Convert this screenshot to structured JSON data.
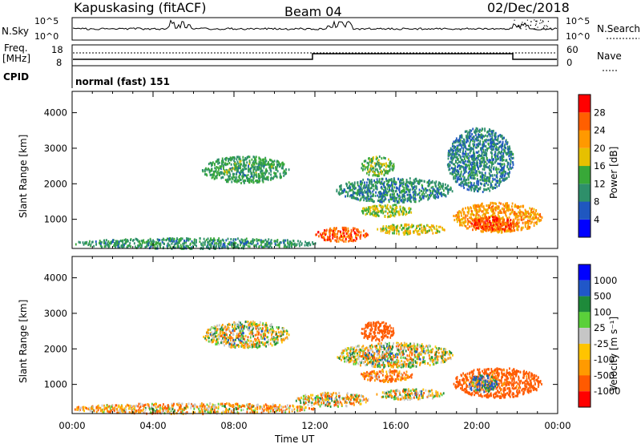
{
  "header": {
    "station": "Kapuskasing (fitACF)",
    "beam": "Beam 04",
    "date": "02/Dec/2018"
  },
  "panels": {
    "nsky": {
      "label": "N.Sky",
      "ticks": [
        "10^5",
        "10^0"
      ]
    },
    "nsearch": {
      "label": "N.Search"
    },
    "freq": {
      "label_line1": "Freq.",
      "label_line2": "[MHz]",
      "ticks": [
        "18",
        "8"
      ]
    },
    "nave": {
      "label": "Nave",
      "ticks": [
        "60",
        "0"
      ]
    },
    "cpid": {
      "label": "CPID",
      "value": "normal (fast) 151"
    }
  },
  "colors": {
    "power": [
      "#0000ff",
      "#1f57c0",
      "#2e8f6a",
      "#38a838",
      "#e6c000",
      "#ff9900",
      "#ff5f00",
      "#ff0000"
    ],
    "velocity": [
      "#ff0000",
      "#ff5a00",
      "#ff9a00",
      "#ffc400",
      "#c6c6c6",
      "#5ad03a",
      "#1e8a3a",
      "#2057c8",
      "#0000ff"
    ]
  },
  "chart_data": [
    {
      "type": "heatmap",
      "name": "power",
      "ylabel": "Slant Range [km]",
      "xlabel": "Time UT",
      "x_ticks": [
        "00:00",
        "04:00",
        "08:00",
        "12:00",
        "16:00",
        "20:00",
        "00:00"
      ],
      "y_ticks": [
        1000,
        2000,
        3000,
        4000
      ],
      "ylim": [
        180,
        4600
      ],
      "xlim": [
        0,
        24
      ],
      "colorbar": {
        "label": "Power [dB]",
        "ticks": [
          4,
          8,
          12,
          16,
          20,
          24,
          28
        ],
        "range": [
          0,
          32
        ]
      },
      "regions": [
        {
          "t": [
            6.4,
            10.7
          ],
          "r": [
            2050,
            2800
          ],
          "v": 12
        },
        {
          "t": [
            14.2,
            15.9
          ],
          "r": [
            2250,
            2800
          ],
          "v": 14
        },
        {
          "t": [
            12.0,
            14.6
          ],
          "r": [
            400,
            800
          ],
          "v": 26
        },
        {
          "t": [
            14.2,
            16.8
          ],
          "r": [
            1100,
            1450
          ],
          "v": 16
        },
        {
          "t": [
            15.0,
            18.4
          ],
          "r": [
            600,
            900
          ],
          "v": 18
        },
        {
          "t": [
            18.8,
            23.2
          ],
          "r": [
            650,
            1500
          ],
          "v": 22
        },
        {
          "t": [
            19.5,
            22.0
          ],
          "r": [
            700,
            1100
          ],
          "v": 28
        },
        {
          "t": [
            0.0,
            12.0
          ],
          "r": [
            200,
            500
          ],
          "v": 11
        },
        {
          "t": [
            13.0,
            18.8
          ],
          "r": [
            1500,
            2200
          ],
          "v": 10
        },
        {
          "t": [
            18.5,
            21.8
          ],
          "r": [
            1800,
            3600
          ],
          "v": 9
        }
      ]
    },
    {
      "type": "heatmap",
      "name": "velocity",
      "ylabel": "Slant Range [km]",
      "xlabel": "Time UT",
      "x_ticks": [
        "00:00",
        "04:00",
        "08:00",
        "12:00",
        "16:00",
        "20:00",
        "00:00"
      ],
      "y_ticks": [
        1000,
        2000,
        3000,
        4000
      ],
      "ylim": [
        180,
        4600
      ],
      "xlim": [
        0,
        24
      ],
      "colorbar": {
        "label": "Velocity [m s⁻¹]",
        "ticks": [
          1000,
          500,
          100,
          25,
          -25,
          -100,
          -500,
          -1000
        ]
      },
      "regions": [
        {
          "t": [
            6.4,
            10.7
          ],
          "r": [
            2050,
            2800
          ],
          "v": 0
        },
        {
          "t": [
            14.2,
            15.9
          ],
          "r": [
            2250,
            2800
          ],
          "v": -300
        },
        {
          "t": [
            11.0,
            14.6
          ],
          "r": [
            400,
            800
          ],
          "v": -20
        },
        {
          "t": [
            14.2,
            16.8
          ],
          "r": [
            1100,
            1450
          ],
          "v": -120
        },
        {
          "t": [
            15.0,
            18.4
          ],
          "r": [
            600,
            900
          ],
          "v": -10
        },
        {
          "t": [
            18.8,
            23.2
          ],
          "r": [
            650,
            1500
          ],
          "v": -200
        },
        {
          "t": [
            19.5,
            21.0
          ],
          "r": [
            800,
            1300
          ],
          "v": 80
        },
        {
          "t": [
            0.0,
            12.0
          ],
          "r": [
            200,
            500
          ],
          "v": -60
        },
        {
          "t": [
            13.0,
            18.8
          ],
          "r": [
            1500,
            2200
          ],
          "v": 0
        }
      ]
    }
  ]
}
